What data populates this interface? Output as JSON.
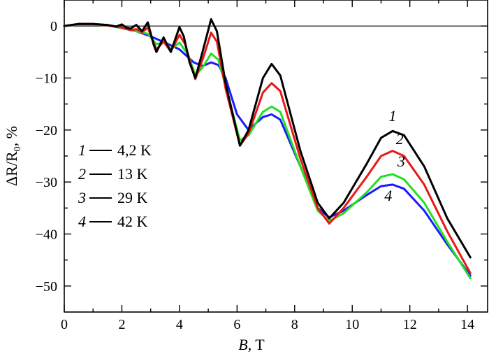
{
  "chart_data": {
    "type": "line",
    "title": "",
    "xlabel_var": "B",
    "xlabel_unit": ", T",
    "ylabel_delta": "ΔR/R",
    "ylabel_sub": "0",
    "ylabel_unit": ", %",
    "xlim": [
      0,
      14.7
    ],
    "ylim": [
      -55,
      5
    ],
    "x_ticks": [
      0,
      2,
      4,
      6,
      8,
      10,
      12,
      14
    ],
    "y_ticks": [
      0,
      -10,
      -20,
      -30,
      -40,
      -50
    ],
    "zero_line": true,
    "grid": false,
    "legend_position": "left",
    "series": [
      {
        "name": "4,2 K",
        "number": "1",
        "color": "#000000",
        "label_at": [
          11.4,
          -18.3
        ],
        "points": [
          [
            0,
            0
          ],
          [
            0.5,
            0.4
          ],
          [
            1,
            0.4
          ],
          [
            1.5,
            0.2
          ],
          [
            1.8,
            -0.1
          ],
          [
            2.0,
            0.3
          ],
          [
            2.15,
            -0.3
          ],
          [
            2.3,
            -0.5
          ],
          [
            2.5,
            0.2
          ],
          [
            2.7,
            -1.0
          ],
          [
            2.9,
            0.7
          ],
          [
            3.1,
            -3.5
          ],
          [
            3.2,
            -5.0
          ],
          [
            3.45,
            -2.2
          ],
          [
            3.7,
            -5.0
          ],
          [
            4.0,
            -0.2
          ],
          [
            4.15,
            -2.0
          ],
          [
            4.35,
            -7.0
          ],
          [
            4.55,
            -10.0
          ],
          [
            4.8,
            -5.0
          ],
          [
            5.1,
            1.3
          ],
          [
            5.3,
            -1.0
          ],
          [
            5.6,
            -11.0
          ],
          [
            6.1,
            -23.0
          ],
          [
            6.4,
            -20.0
          ],
          [
            6.9,
            -10.0
          ],
          [
            7.2,
            -7.3
          ],
          [
            7.5,
            -9.5
          ],
          [
            8.2,
            -24.0
          ],
          [
            8.8,
            -34.0
          ],
          [
            9.2,
            -37.0
          ],
          [
            9.7,
            -34.0
          ],
          [
            10.5,
            -26.5
          ],
          [
            11.0,
            -21.5
          ],
          [
            11.4,
            -20.2
          ],
          [
            11.8,
            -21.0
          ],
          [
            12.5,
            -27.0
          ],
          [
            13.3,
            -37.0
          ],
          [
            14.1,
            -44.5
          ]
        ]
      },
      {
        "name": "13 K",
        "number": "2",
        "color": "#e81818",
        "label_at": [
          11.65,
          -22.7
        ],
        "points": [
          [
            0,
            0
          ],
          [
            0.5,
            0.4
          ],
          [
            1,
            0.4
          ],
          [
            1.5,
            0.1
          ],
          [
            2.0,
            -0.3
          ],
          [
            2.3,
            -0.8
          ],
          [
            2.5,
            -0.6
          ],
          [
            2.7,
            -1.2
          ],
          [
            2.9,
            -0.3
          ],
          [
            3.1,
            -3.2
          ],
          [
            3.2,
            -4.5
          ],
          [
            3.45,
            -3.0
          ],
          [
            3.7,
            -4.9
          ],
          [
            4.0,
            -1.7
          ],
          [
            4.2,
            -3.5
          ],
          [
            4.4,
            -7.5
          ],
          [
            4.55,
            -10.2
          ],
          [
            4.8,
            -6.5
          ],
          [
            5.1,
            -1.3
          ],
          [
            5.3,
            -3.0
          ],
          [
            5.6,
            -12.0
          ],
          [
            6.1,
            -23.0
          ],
          [
            6.4,
            -20.7
          ],
          [
            6.9,
            -12.8
          ],
          [
            7.2,
            -11.0
          ],
          [
            7.5,
            -12.5
          ],
          [
            8.2,
            -25.5
          ],
          [
            8.8,
            -35.0
          ],
          [
            9.2,
            -38.0
          ],
          [
            9.7,
            -35.0
          ],
          [
            10.5,
            -29.0
          ],
          [
            11.0,
            -25.0
          ],
          [
            11.4,
            -24.0
          ],
          [
            11.8,
            -25.0
          ],
          [
            12.5,
            -30.5
          ],
          [
            13.3,
            -39.5
          ],
          [
            14.1,
            -47.5
          ]
        ]
      },
      {
        "name": "29 K",
        "number": "3",
        "color": "#22e022",
        "label_at": [
          11.7,
          -27.0
        ],
        "points": [
          [
            0,
            0
          ],
          [
            0.5,
            0.3
          ],
          [
            1,
            0.3
          ],
          [
            1.5,
            0.1
          ],
          [
            2.0,
            -0.4
          ],
          [
            2.5,
            -1.0
          ],
          [
            2.9,
            -1.5
          ],
          [
            3.2,
            -3.5
          ],
          [
            3.5,
            -3.0
          ],
          [
            3.7,
            -4.5
          ],
          [
            4.0,
            -3.2
          ],
          [
            4.3,
            -5.5
          ],
          [
            4.55,
            -9.5
          ],
          [
            4.8,
            -8.0
          ],
          [
            5.1,
            -5.3
          ],
          [
            5.35,
            -6.5
          ],
          [
            5.6,
            -11.5
          ],
          [
            6.1,
            -22.0
          ],
          [
            6.4,
            -21.0
          ],
          [
            6.9,
            -16.5
          ],
          [
            7.2,
            -15.5
          ],
          [
            7.5,
            -16.5
          ],
          [
            8.2,
            -27.0
          ],
          [
            8.8,
            -35.5
          ],
          [
            9.2,
            -37.5
          ],
          [
            9.7,
            -36.0
          ],
          [
            10.5,
            -32.0
          ],
          [
            11.0,
            -29.0
          ],
          [
            11.4,
            -28.5
          ],
          [
            11.8,
            -29.5
          ],
          [
            12.5,
            -34.0
          ],
          [
            13.3,
            -41.5
          ],
          [
            14.1,
            -48.5
          ]
        ]
      },
      {
        "name": "42 K",
        "number": "4",
        "color": "#1a1aff",
        "label_at": [
          11.25,
          -33.6
        ],
        "points": [
          [
            0,
            0
          ],
          [
            0.5,
            0.4
          ],
          [
            1,
            0.4
          ],
          [
            1.5,
            0.2
          ],
          [
            2.0,
            -0.4
          ],
          [
            2.5,
            -1.0
          ],
          [
            3.0,
            -2.0
          ],
          [
            3.5,
            -3.2
          ],
          [
            4.0,
            -4.5
          ],
          [
            4.5,
            -7.0
          ],
          [
            4.8,
            -7.7
          ],
          [
            5.1,
            -7.0
          ],
          [
            5.35,
            -7.5
          ],
          [
            5.6,
            -10.0
          ],
          [
            6.0,
            -17.0
          ],
          [
            6.4,
            -20.0
          ],
          [
            6.9,
            -17.5
          ],
          [
            7.2,
            -17.0
          ],
          [
            7.5,
            -18.0
          ],
          [
            8.2,
            -27.0
          ],
          [
            8.8,
            -35.0
          ],
          [
            9.2,
            -36.8
          ],
          [
            9.7,
            -35.5
          ],
          [
            10.5,
            -32.5
          ],
          [
            11.0,
            -30.8
          ],
          [
            11.4,
            -30.5
          ],
          [
            11.8,
            -31.3
          ],
          [
            12.5,
            -35.5
          ],
          [
            13.3,
            -42.0
          ],
          [
            14.1,
            -48.0
          ]
        ]
      }
    ]
  }
}
